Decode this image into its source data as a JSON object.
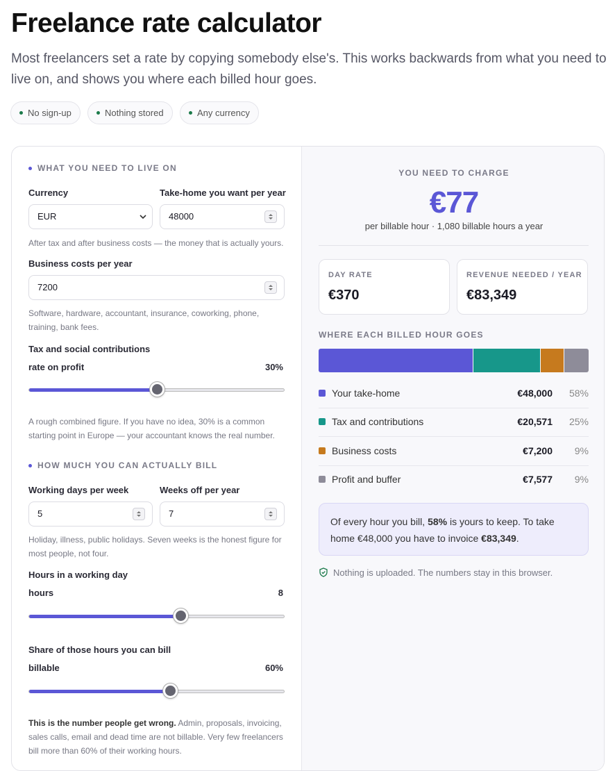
{
  "header": {
    "title": "Freelance rate calculator",
    "intro": "Most freelancers set a rate by copying somebody else's. This works backwards from what you need to live on, and shows you where each billed hour goes.",
    "badges": [
      "No sign-up",
      "Nothing stored",
      "Any currency"
    ]
  },
  "inputs": {
    "section_live": "WHAT YOU NEED TO LIVE ON",
    "currency": {
      "label": "Currency",
      "value": "EUR"
    },
    "takehome": {
      "label": "Take-home you want per year",
      "value": "48000",
      "hint": "After tax and after business costs — the money that is actually yours."
    },
    "costs": {
      "label": "Business costs per year",
      "value": "7200",
      "hint": "Software, hardware, accountant, insurance, coworking, phone, training, bank fees."
    },
    "tax": {
      "label": "Tax and social contributions",
      "sublabel": "rate on profit",
      "value": "30%",
      "hint": "A rough combined figure. If you have no idea, 30% is a common starting point in Europe — your accountant knows the real number."
    },
    "section_bill": "HOW MUCH YOU CAN ACTUALLY BILL",
    "days": {
      "label": "Working days per week",
      "value": "5"
    },
    "weeks": {
      "label": "Weeks off per year",
      "value": "7",
      "hint": "Holiday, illness, public holidays. Seven weeks is the honest figure for most people, not four."
    },
    "hours": {
      "label": "Hours in a working day",
      "sublabel": "hours",
      "value": "8"
    },
    "billable": {
      "label": "Share of those hours you can bill",
      "sublabel": "billable",
      "value": "60%",
      "hint_bold": "This is the number people get wrong.",
      "hint": " Admin, proposals, invoicing, sales calls, email and dead time are not billable. Very few freelancers bill more than 60% of their working hours."
    }
  },
  "results": {
    "heading": "YOU NEED TO CHARGE",
    "rate": "€77",
    "rate_note": "per billable hour · 1,080 billable hours a year",
    "day_rate": {
      "label": "DAY RATE",
      "value": "€370"
    },
    "revenue": {
      "label": "REVENUE NEEDED / YEAR",
      "value": "€83,349"
    },
    "breakdown_title": "WHERE EACH BILLED HOUR GOES",
    "breakdown": [
      {
        "name": "Your take-home",
        "color": "#5b57d6",
        "amount": 48000,
        "amount_label": "€48,000",
        "share": "58%"
      },
      {
        "name": "Tax and contributions",
        "color": "#17978a",
        "amount": 20571,
        "amount_label": "€20,571",
        "share": "25%"
      },
      {
        "name": "Business costs",
        "color": "#c67a1e",
        "amount": 7200,
        "amount_label": "€7,200",
        "share": "9%"
      },
      {
        "name": "Profit and buffer",
        "color": "#8e8c99",
        "amount": 7577,
        "amount_label": "€7,577",
        "share": "9%"
      }
    ],
    "summary": [
      "Of every hour you bill, ",
      "58%",
      " is yours to keep. To take home €48,000 you have to invoice ",
      "€83,349",
      "."
    ],
    "privacy": "Nothing is uploaded. The numbers stay in this browser."
  }
}
